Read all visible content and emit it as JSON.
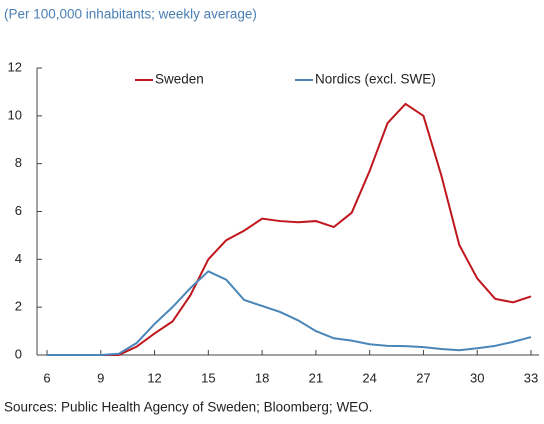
{
  "chart_data": {
    "type": "line",
    "subtitle": "(Per 100,000 inhabitants; weekly average)",
    "source": "Sources: Public Health Agency of Sweden; Bloomberg; WEO.",
    "x": [
      6,
      7,
      8,
      9,
      10,
      11,
      12,
      13,
      14,
      15,
      16,
      17,
      18,
      19,
      20,
      21,
      22,
      23,
      24,
      25,
      26,
      27,
      28,
      29,
      30,
      31,
      32,
      33
    ],
    "series": [
      {
        "name": "Sweden",
        "color": "#c0161e",
        "values": [
          0,
          0,
          0,
          0,
          0,
          0.35,
          0.9,
          1.4,
          2.5,
          4.0,
          4.8,
          5.2,
          5.7,
          5.6,
          5.55,
          5.6,
          5.35,
          5.95,
          7.7,
          9.7,
          10.5,
          10.0,
          7.5,
          4.6,
          3.2,
          2.35,
          2.2,
          2.45
        ]
      },
      {
        "name": "Nordics (excl. SWE)",
        "color": "#4a86b8",
        "values": [
          0,
          0,
          0,
          0,
          0.05,
          0.5,
          1.3,
          2.0,
          2.8,
          3.5,
          3.15,
          2.3,
          2.05,
          1.8,
          1.45,
          1.0,
          0.7,
          0.6,
          0.45,
          0.38,
          0.37,
          0.33,
          0.25,
          0.2,
          0.28,
          0.38,
          0.55,
          0.75
        ]
      }
    ],
    "xlim": [
      6,
      33
    ],
    "xticks": [
      6,
      9,
      12,
      15,
      18,
      21,
      24,
      27,
      30,
      33
    ],
    "ylim": [
      0,
      12
    ],
    "yticks": [
      0,
      2,
      4,
      6,
      8,
      10,
      12
    ],
    "grid": false,
    "legend": "top"
  }
}
